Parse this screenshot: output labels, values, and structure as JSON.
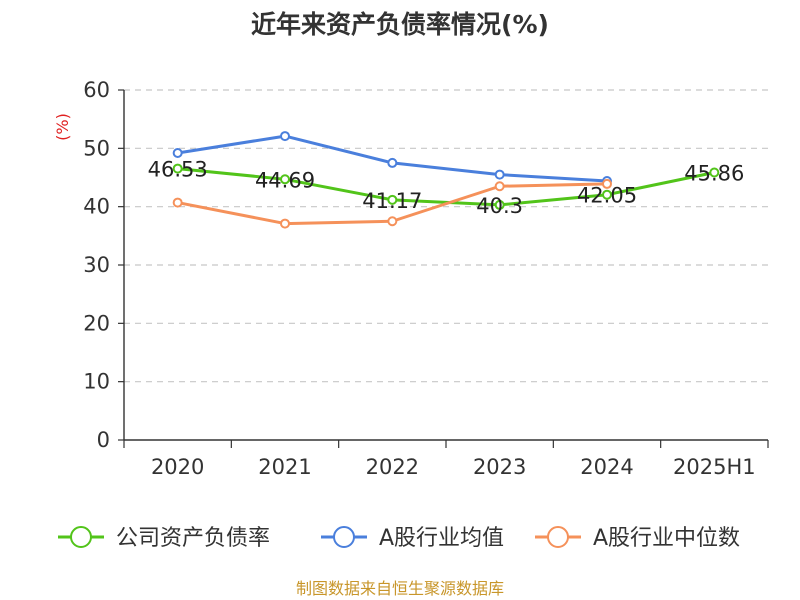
{
  "chart_data": {
    "type": "line",
    "title": "近年来资产负债率情况(%)",
    "ylabel": "(%)",
    "ylim": [
      0,
      60
    ],
    "yticks": [
      0,
      10,
      20,
      30,
      40,
      50,
      60
    ],
    "grid": true,
    "legend_position": "bottom",
    "categories": [
      "2020",
      "2021",
      "2022",
      "2023",
      "2024",
      "2025H1"
    ],
    "series": [
      {
        "name": "公司资产负债率",
        "color": "#52c41a",
        "values": [
          46.53,
          44.69,
          41.17,
          40.3,
          42.05,
          45.86
        ],
        "labels": [
          "46.53",
          "44.69",
          "41.17",
          "40.3",
          "42.05",
          "45.86"
        ]
      },
      {
        "name": "A股行业均值",
        "color": "#4a7fdc",
        "values": [
          49.2,
          52.1,
          47.5,
          45.5,
          44.4,
          null
        ]
      },
      {
        "name": "A股行业中位数",
        "color": "#f5915a",
        "values": [
          40.7,
          37.1,
          37.5,
          43.5,
          43.9,
          null
        ]
      }
    ]
  },
  "source": "制图数据来自恒生聚源数据库"
}
